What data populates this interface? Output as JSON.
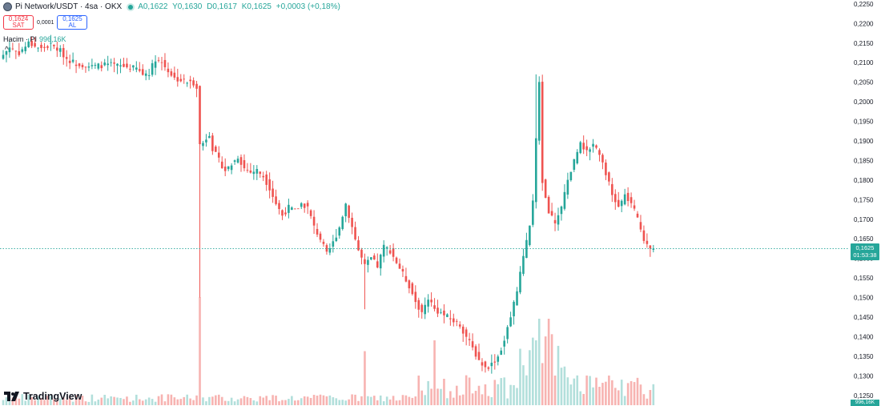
{
  "header": {
    "symbol_line": "Pi Network/USDT · 4sa · OKX",
    "ohlc": {
      "open": "A0,1622",
      "high": "Y0,1630",
      "low": "D0,1617",
      "close": "K0,1625",
      "change": "+0,0003 (+0,18%)"
    },
    "sell_price": "0,1624",
    "sell_label": "SAT",
    "spread": "0,0001",
    "buy_price": "0,1625",
    "buy_label": "AL",
    "volume_label": "Hacim · PI",
    "volume_value": "996,16K",
    "collapse_glyph": "^"
  },
  "brand": {
    "name": "TradingView"
  },
  "current": {
    "price": "0,1625",
    "countdown": "01:53:38",
    "volume_tag": "996,16K"
  },
  "colors": {
    "up": "#26a69a",
    "down": "#ef5350",
    "up_volume": "#b2dfdb",
    "down_volume": "#f7b3b1"
  },
  "chart_data": {
    "type": "candlestick",
    "ylim": [
      0.1225,
      0.226
    ],
    "y_ticks": [
      "0,2250",
      "0,2200",
      "0,2150",
      "0,2100",
      "0,2050",
      "0,2000",
      "0,1950",
      "0,1900",
      "0,1850",
      "0,1800",
      "0,1750",
      "0,1700",
      "0,1650",
      "0,1600",
      "0,1550",
      "0,1500",
      "0,1450",
      "0,1400",
      "0,1350",
      "0,1300",
      "0,1250"
    ],
    "grid": false,
    "last_price": 0.1625,
    "path": [
      [
        0,
        0.212
      ],
      [
        2,
        0.214
      ],
      [
        5,
        0.2125
      ],
      [
        8,
        0.215
      ],
      [
        12,
        0.2135
      ],
      [
        15,
        0.2145
      ],
      [
        18,
        0.213
      ],
      [
        20,
        0.211
      ],
      [
        23,
        0.2098
      ],
      [
        28,
        0.209
      ],
      [
        33,
        0.2095
      ],
      [
        38,
        0.209
      ],
      [
        42,
        0.2085
      ],
      [
        44,
        0.207
      ],
      [
        46,
        0.2075
      ],
      [
        48,
        0.211
      ],
      [
        50,
        0.21
      ],
      [
        52,
        0.208
      ],
      [
        54,
        0.206
      ],
      [
        56,
        0.2055
      ],
      [
        58,
        0.205
      ],
      [
        60,
        0.2048
      ],
      [
        61,
        0.204
      ],
      [
        62,
        0.189
      ],
      [
        63,
        0.1895
      ],
      [
        65,
        0.192
      ],
      [
        66,
        0.188
      ],
      [
        68,
        0.185
      ],
      [
        70,
        0.1825
      ],
      [
        72,
        0.184
      ],
      [
        74,
        0.186
      ],
      [
        76,
        0.183
      ],
      [
        78,
        0.182
      ],
      [
        80,
        0.1825
      ],
      [
        82,
        0.181
      ],
      [
        84,
        0.178
      ],
      [
        86,
        0.174
      ],
      [
        88,
        0.171
      ],
      [
        90,
        0.173
      ],
      [
        92,
        0.172
      ],
      [
        94,
        0.174
      ],
      [
        96,
        0.173
      ],
      [
        98,
        0.168
      ],
      [
        100,
        0.165
      ],
      [
        102,
        0.161
      ],
      [
        104,
        0.164
      ],
      [
        106,
        0.168
      ],
      [
        108,
        0.174
      ],
      [
        110,
        0.168
      ],
      [
        112,
        0.162
      ],
      [
        114,
        0.158
      ],
      [
        116,
        0.16
      ],
      [
        118,
        0.158
      ],
      [
        120,
        0.163
      ],
      [
        122,
        0.162
      ],
      [
        124,
        0.159
      ],
      [
        126,
        0.156
      ],
      [
        128,
        0.153
      ],
      [
        130,
        0.149
      ],
      [
        132,
        0.146
      ],
      [
        134,
        0.15
      ],
      [
        136,
        0.147
      ],
      [
        138,
        0.146
      ],
      [
        140,
        0.145
      ],
      [
        142,
        0.144
      ],
      [
        144,
        0.143
      ],
      [
        146,
        0.14
      ],
      [
        148,
        0.137
      ],
      [
        150,
        0.134
      ],
      [
        152,
        0.132
      ],
      [
        154,
        0.133
      ],
      [
        156,
        0.135
      ],
      [
        158,
        0.139
      ],
      [
        160,
        0.145
      ],
      [
        162,
        0.152
      ],
      [
        164,
        0.16
      ],
      [
        166,
        0.168
      ],
      [
        167,
        0.175
      ],
      [
        168,
        0.19
      ],
      [
        169,
        0.205
      ],
      [
        170,
        0.18
      ],
      [
        172,
        0.172
      ],
      [
        174,
        0.169
      ],
      [
        176,
        0.173
      ],
      [
        178,
        0.18
      ],
      [
        180,
        0.185
      ],
      [
        182,
        0.19
      ],
      [
        184,
        0.187
      ],
      [
        186,
        0.1895
      ],
      [
        188,
        0.187
      ],
      [
        190,
        0.182
      ],
      [
        192,
        0.176
      ],
      [
        194,
        0.173
      ],
      [
        196,
        0.176
      ],
      [
        198,
        0.174
      ],
      [
        200,
        0.17
      ],
      [
        202,
        0.165
      ],
      [
        204,
        0.163
      ],
      [
        205,
        0.1625
      ]
    ],
    "spikes": {
      "62": {
        "low": 0.15,
        "vol": 1.0
      },
      "114": {
        "low": 0.147,
        "vol": 0.5
      },
      "136": {
        "vol": 0.6
      },
      "168": {
        "high": 0.207,
        "vol": 0.6
      },
      "169": {
        "high": 0.2065,
        "vol": 0.8
      },
      "172": {
        "vol": 0.8
      },
      "62b": {
        "vol": 0.2
      }
    }
  }
}
